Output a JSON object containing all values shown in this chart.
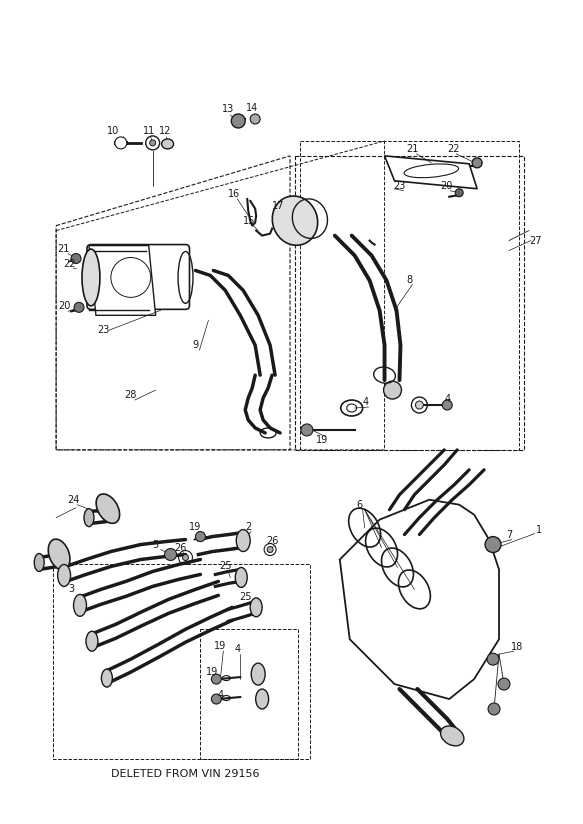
{
  "background_color": "#ffffff",
  "fig_width": 5.83,
  "fig_height": 8.24,
  "dpi": 100,
  "line_color": "#1a1a1a",
  "deleted_text": "DELETED FROM VIN 29156",
  "label_fontsize": 7.0
}
